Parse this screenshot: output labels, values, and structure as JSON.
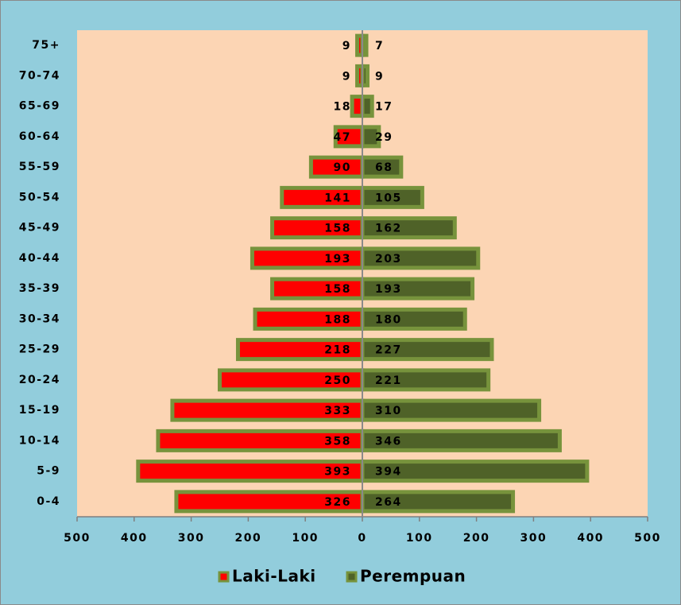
{
  "chart_data": {
    "type": "pyramid",
    "categories": [
      "75+",
      "70-74",
      "65-69",
      "60-64",
      "55-59",
      "50-54",
      "45-49",
      "40-44",
      "35-39",
      "30-34",
      "25-29",
      "20-24",
      "15-19",
      "10-14",
      "5-9",
      "0-4"
    ],
    "series": [
      {
        "name": "Laki-Laki",
        "color": "#ff0000",
        "side": "left",
        "values": [
          9,
          9,
          18,
          47,
          90,
          141,
          158,
          193,
          158,
          188,
          218,
          250,
          333,
          358,
          393,
          326
        ]
      },
      {
        "name": "Perempuan",
        "color": "#4f6228",
        "side": "right",
        "values": [
          7,
          9,
          17,
          29,
          68,
          105,
          162,
          203,
          193,
          180,
          227,
          221,
          310,
          346,
          394,
          264
        ]
      }
    ],
    "bar_border": "#77933c",
    "xlim": [
      -500,
      500
    ],
    "xticks": [
      {
        "value": -500,
        "label": "500"
      },
      {
        "value": -400,
        "label": "400"
      },
      {
        "value": -300,
        "label": "300"
      },
      {
        "value": -200,
        "label": "200"
      },
      {
        "value": -100,
        "label": "100"
      },
      0,
      100,
      200,
      300,
      400,
      500
    ],
    "legend": "bottom"
  }
}
